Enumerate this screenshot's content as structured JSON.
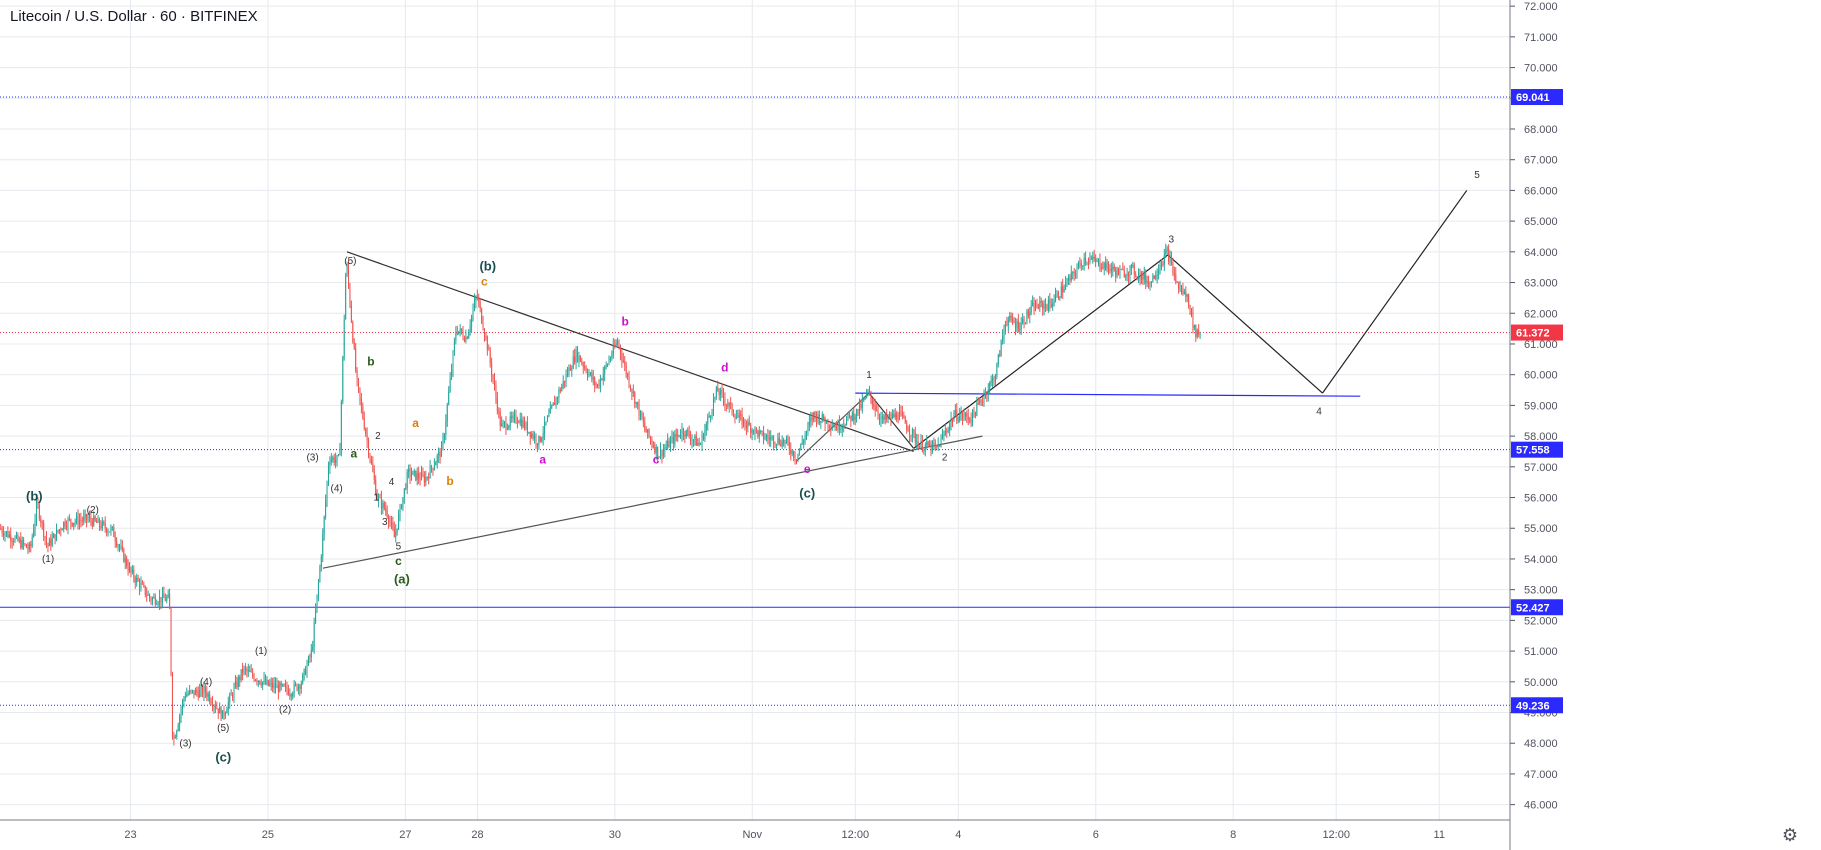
{
  "header": {
    "title": "Litecoin / U.S. Dollar · 60 · BITFINEX"
  },
  "chart_data": {
    "type": "candlestick",
    "symbol": "Litecoin / U.S. Dollar",
    "interval": "60",
    "exchange": "BITFINEX",
    "ylim": [
      45.5,
      72.2
    ],
    "y_ticks": [
      "46.000",
      "47.000",
      "48.000",
      "49.000",
      "50.000",
      "51.000",
      "52.000",
      "53.000",
      "54.000",
      "55.000",
      "56.000",
      "57.000",
      "58.000",
      "59.000",
      "60.000",
      "61.000",
      "62.000",
      "63.000",
      "64.000",
      "65.000",
      "66.000",
      "67.000",
      "68.000",
      "69.000",
      "70.000",
      "71.000",
      "72.000"
    ],
    "x_ticks": [
      {
        "label": "23",
        "t": 3.8
      },
      {
        "label": "25",
        "t": 7.8
      },
      {
        "label": "27",
        "t": 11.8
      },
      {
        "label": "28",
        "t": 13.9
      },
      {
        "label": "30",
        "t": 17.9
      },
      {
        "label": "Nov",
        "t": 21.9
      },
      {
        "label": "12:00",
        "t": 24.9
      },
      {
        "label": "4",
        "t": 27.9
      },
      {
        "label": "6",
        "t": 31.9
      },
      {
        "label": "8",
        "t": 35.9
      },
      {
        "label": "12:00",
        "t": 38.9
      },
      {
        "label": "11",
        "t": 41.9
      }
    ],
    "price_path": [
      [
        0.0,
        55.0
      ],
      [
        0.9,
        54.3
      ],
      [
        1.1,
        55.8
      ],
      [
        1.4,
        54.4
      ],
      [
        1.9,
        55.2
      ],
      [
        2.6,
        55.3
      ],
      [
        3.3,
        54.9
      ],
      [
        3.8,
        53.6
      ],
      [
        4.4,
        52.7
      ],
      [
        4.95,
        52.7
      ],
      [
        5.05,
        48.0
      ],
      [
        5.4,
        49.6
      ],
      [
        6.0,
        49.7
      ],
      [
        6.5,
        48.9
      ],
      [
        7.1,
        50.4
      ],
      [
        7.8,
        49.9
      ],
      [
        8.5,
        49.7
      ],
      [
        8.8,
        50.0
      ],
      [
        9.1,
        51.0
      ],
      [
        9.4,
        54.5
      ],
      [
        9.6,
        57.3
      ],
      [
        9.9,
        57.2
      ],
      [
        10.1,
        63.8
      ],
      [
        10.4,
        59.8
      ],
      [
        10.7,
        57.9
      ],
      [
        11.0,
        56.0
      ],
      [
        11.3,
        55.5
      ],
      [
        11.5,
        54.7
      ],
      [
        11.9,
        56.8
      ],
      [
        12.4,
        56.6
      ],
      [
        12.9,
        57.6
      ],
      [
        13.3,
        61.5
      ],
      [
        13.6,
        61.2
      ],
      [
        13.9,
        62.6
      ],
      [
        14.2,
        61.0
      ],
      [
        14.6,
        58.3
      ],
      [
        15.1,
        58.6
      ],
      [
        15.7,
        57.8
      ],
      [
        16.2,
        59.2
      ],
      [
        16.8,
        60.7
      ],
      [
        17.4,
        59.6
      ],
      [
        18.0,
        61.1
      ],
      [
        18.3,
        59.9
      ],
      [
        18.8,
        58.2
      ],
      [
        19.2,
        57.4
      ],
      [
        19.9,
        58.2
      ],
      [
        20.4,
        57.7
      ],
      [
        20.9,
        59.5
      ],
      [
        21.5,
        58.6
      ],
      [
        22.2,
        58.0
      ],
      [
        22.9,
        57.8
      ],
      [
        23.2,
        57.3
      ],
      [
        23.7,
        58.7
      ],
      [
        24.4,
        58.3
      ],
      [
        25.0,
        58.8
      ],
      [
        25.3,
        59.4
      ],
      [
        25.7,
        58.5
      ],
      [
        26.2,
        58.7
      ],
      [
        26.8,
        57.7
      ],
      [
        27.3,
        57.6
      ],
      [
        27.8,
        58.7
      ],
      [
        28.3,
        58.6
      ],
      [
        28.7,
        59.4
      ],
      [
        29.0,
        60.0
      ],
      [
        29.3,
        61.8
      ],
      [
        29.7,
        61.6
      ],
      [
        30.1,
        62.2
      ],
      [
        30.6,
        62.3
      ],
      [
        31.1,
        63.0
      ],
      [
        31.6,
        63.8
      ],
      [
        32.1,
        63.6
      ],
      [
        32.6,
        63.3
      ],
      [
        33.0,
        63.4
      ],
      [
        33.5,
        63.0
      ],
      [
        34.0,
        64.0
      ],
      [
        34.3,
        62.9
      ],
      [
        34.6,
        62.5
      ],
      [
        34.8,
        61.4
      ],
      [
        34.95,
        61.37
      ]
    ],
    "candles_per_day": 24,
    "horizontal_lines": [
      {
        "value": 69.041,
        "style": "dotted",
        "color": "#2a2aff",
        "label": "69.041"
      },
      {
        "value": 61.372,
        "style": "dotted",
        "color": "#f23645",
        "label": "61.372"
      },
      {
        "value": 57.558,
        "style": "dotted",
        "color": "#2a2aff",
        "label": "57.558"
      },
      {
        "value": 52.427,
        "style": "solid",
        "color": "#2a2aff",
        "label": "52.427"
      },
      {
        "value": 49.236,
        "style": "dotted",
        "color": "#2a2aff",
        "label": "49.236"
      }
    ],
    "trend_lines": [
      {
        "from": [
          10.1,
          64.0
        ],
        "to": [
          26.6,
          57.5
        ],
        "color": "#333333"
      },
      {
        "from": [
          9.4,
          53.7
        ],
        "to": [
          28.6,
          58.0
        ],
        "color": "#555555"
      },
      {
        "from": [
          23.2,
          57.2
        ],
        "to": [
          25.3,
          59.4
        ],
        "color": "#555555"
      },
      {
        "from": [
          25.3,
          59.4
        ],
        "to": [
          26.6,
          57.6
        ],
        "color": "#333333"
      },
      {
        "from": [
          26.6,
          57.6
        ],
        "to": [
          34.0,
          63.9
        ],
        "color": "#222222"
      },
      {
        "from": [
          34.0,
          63.9
        ],
        "to": [
          38.5,
          59.4
        ],
        "color": "#222222"
      },
      {
        "from": [
          38.5,
          59.4
        ],
        "to": [
          42.7,
          66.0
        ],
        "color": "#222222"
      }
    ],
    "blue_segment": {
      "from": [
        24.9,
        59.4
      ],
      "to": [
        39.6,
        59.3
      ],
      "color": "#2a2aff"
    },
    "annotations": [
      {
        "text": "(b)",
        "t": 1.0,
        "y": 55.9,
        "color": "#1b4f4f",
        "size": 13
      },
      {
        "text": "(2)",
        "t": 2.7,
        "y": 55.5,
        "color": "#333333",
        "size": 10
      },
      {
        "text": "(1)",
        "t": 1.4,
        "y": 53.9,
        "color": "#333333",
        "size": 10
      },
      {
        "text": "(4)",
        "t": 6.0,
        "y": 49.9,
        "color": "#333333",
        "size": 10
      },
      {
        "text": "(3)",
        "t": 5.4,
        "y": 47.9,
        "color": "#333333",
        "size": 10
      },
      {
        "text": "(5)",
        "t": 6.5,
        "y": 48.4,
        "color": "#333333",
        "size": 10
      },
      {
        "text": "(c)",
        "t": 6.5,
        "y": 47.4,
        "color": "#1b4f4f",
        "size": 13
      },
      {
        "text": "(1)",
        "t": 7.6,
        "y": 50.9,
        "color": "#333333",
        "size": 10
      },
      {
        "text": "(2)",
        "t": 8.3,
        "y": 49.0,
        "color": "#333333",
        "size": 10
      },
      {
        "text": "(3)",
        "t": 9.1,
        "y": 57.2,
        "color": "#333333",
        "size": 10
      },
      {
        "text": "(4)",
        "t": 9.8,
        "y": 56.2,
        "color": "#333333",
        "size": 10
      },
      {
        "text": "(5)",
        "t": 10.2,
        "y": 63.6,
        "color": "#333333",
        "size": 10
      },
      {
        "text": "a",
        "t": 10.3,
        "y": 57.3,
        "color": "#2b5b1c",
        "size": 12
      },
      {
        "text": "b",
        "t": 10.8,
        "y": 60.3,
        "color": "#2b5b1c",
        "size": 12
      },
      {
        "text": "2",
        "t": 11.0,
        "y": 57.9,
        "color": "#333333",
        "size": 10
      },
      {
        "text": "4",
        "t": 11.4,
        "y": 56.4,
        "color": "#333333",
        "size": 10
      },
      {
        "text": "1",
        "t": 10.95,
        "y": 55.9,
        "color": "#333333",
        "size": 10
      },
      {
        "text": "3",
        "t": 11.2,
        "y": 55.1,
        "color": "#333333",
        "size": 10
      },
      {
        "text": "5",
        "t": 11.6,
        "y": 54.3,
        "color": "#333333",
        "size": 10
      },
      {
        "text": "c",
        "t": 11.6,
        "y": 53.8,
        "color": "#2b5b1c",
        "size": 12
      },
      {
        "text": "(a)",
        "t": 11.7,
        "y": 53.2,
        "color": "#2b5b1c",
        "size": 13
      },
      {
        "text": "a",
        "t": 12.1,
        "y": 58.3,
        "color": "#d9820a",
        "size": 12
      },
      {
        "text": "b",
        "t": 13.1,
        "y": 56.4,
        "color": "#d9820a",
        "size": 12
      },
      {
        "text": "(b)",
        "t": 14.2,
        "y": 63.4,
        "color": "#1b4f4f",
        "size": 13
      },
      {
        "text": "c",
        "t": 14.1,
        "y": 62.9,
        "color": "#d9820a",
        "size": 12
      },
      {
        "text": "a",
        "t": 15.8,
        "y": 57.1,
        "color": "#cc10cc",
        "size": 12
      },
      {
        "text": "b",
        "t": 18.2,
        "y": 61.6,
        "color": "#cc10cc",
        "size": 12
      },
      {
        "text": "c",
        "t": 19.1,
        "y": 57.1,
        "color": "#cc10cc",
        "size": 12
      },
      {
        "text": "d",
        "t": 21.1,
        "y": 60.1,
        "color": "#cc10cc",
        "size": 12
      },
      {
        "text": "e",
        "t": 23.5,
        "y": 56.8,
        "color": "#cc10cc",
        "size": 12
      },
      {
        "text": "(c)",
        "t": 23.5,
        "y": 56.0,
        "color": "#1b4f4f",
        "size": 13
      },
      {
        "text": "1",
        "t": 25.3,
        "y": 59.9,
        "color": "#333333",
        "size": 10
      },
      {
        "text": "2",
        "t": 27.5,
        "y": 57.2,
        "color": "#333333",
        "size": 10
      },
      {
        "text": "3",
        "t": 34.1,
        "y": 64.3,
        "color": "#333333",
        "size": 10
      },
      {
        "text": "4",
        "t": 38.4,
        "y": 58.7,
        "color": "#333333",
        "size": 10
      },
      {
        "text": "5",
        "t": 43.0,
        "y": 66.4,
        "color": "#333333",
        "size": 10
      }
    ],
    "grid": true,
    "colors": {
      "up": "#26a69a",
      "down": "#ef5350",
      "grid": "#e6e9ee",
      "axis": "#50535e"
    },
    "icons": {
      "settings": "gear-icon"
    },
    "settings_glyph": "⚙"
  }
}
